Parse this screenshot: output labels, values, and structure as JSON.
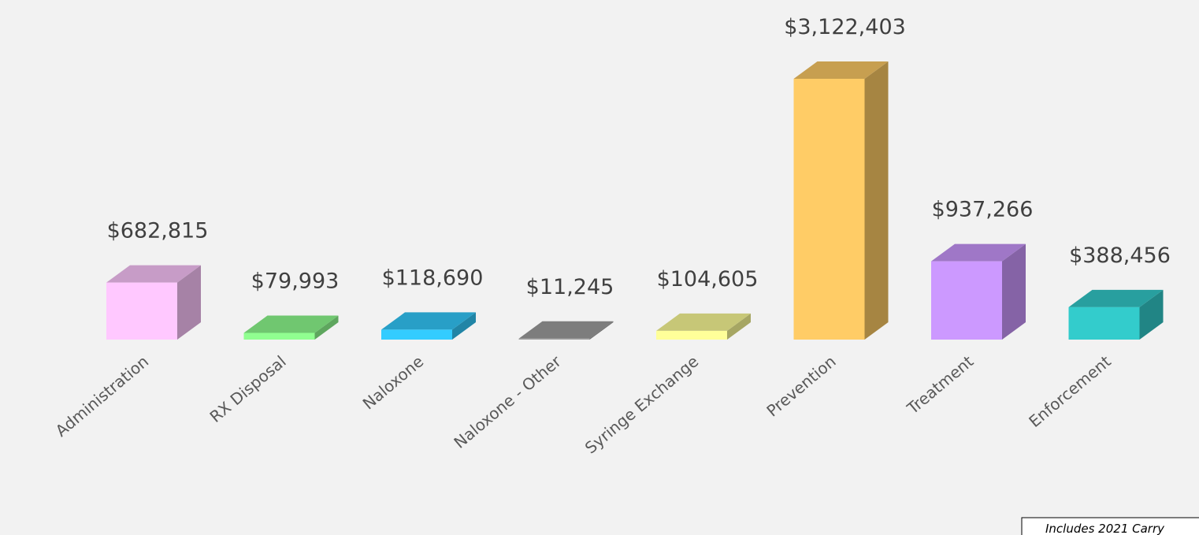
{
  "chart_data": {
    "type": "bar3d",
    "categories": [
      "Administration",
      "RX Disposal",
      "Naloxone",
      "Naloxone - Other",
      "Syringe Exchange",
      "Prevention",
      "Treatment",
      "Enforcement"
    ],
    "values": [
      682815,
      79993,
      118690,
      11245,
      104605,
      3122403,
      937266,
      388456
    ],
    "value_labels": [
      "$682,815",
      "$79,993",
      "$118,690",
      "$11,245",
      "$104,605",
      "$3,122,403",
      "$937,266",
      "$388,456"
    ],
    "colors": [
      "#ffc8ff",
      "#90ff90",
      "#33ccff",
      "#a0a0a0",
      "#ffff99",
      "#ffcc66",
      "#cc99ff",
      "#33cccc"
    ],
    "annotation": "Includes 2021 Carry"
  }
}
